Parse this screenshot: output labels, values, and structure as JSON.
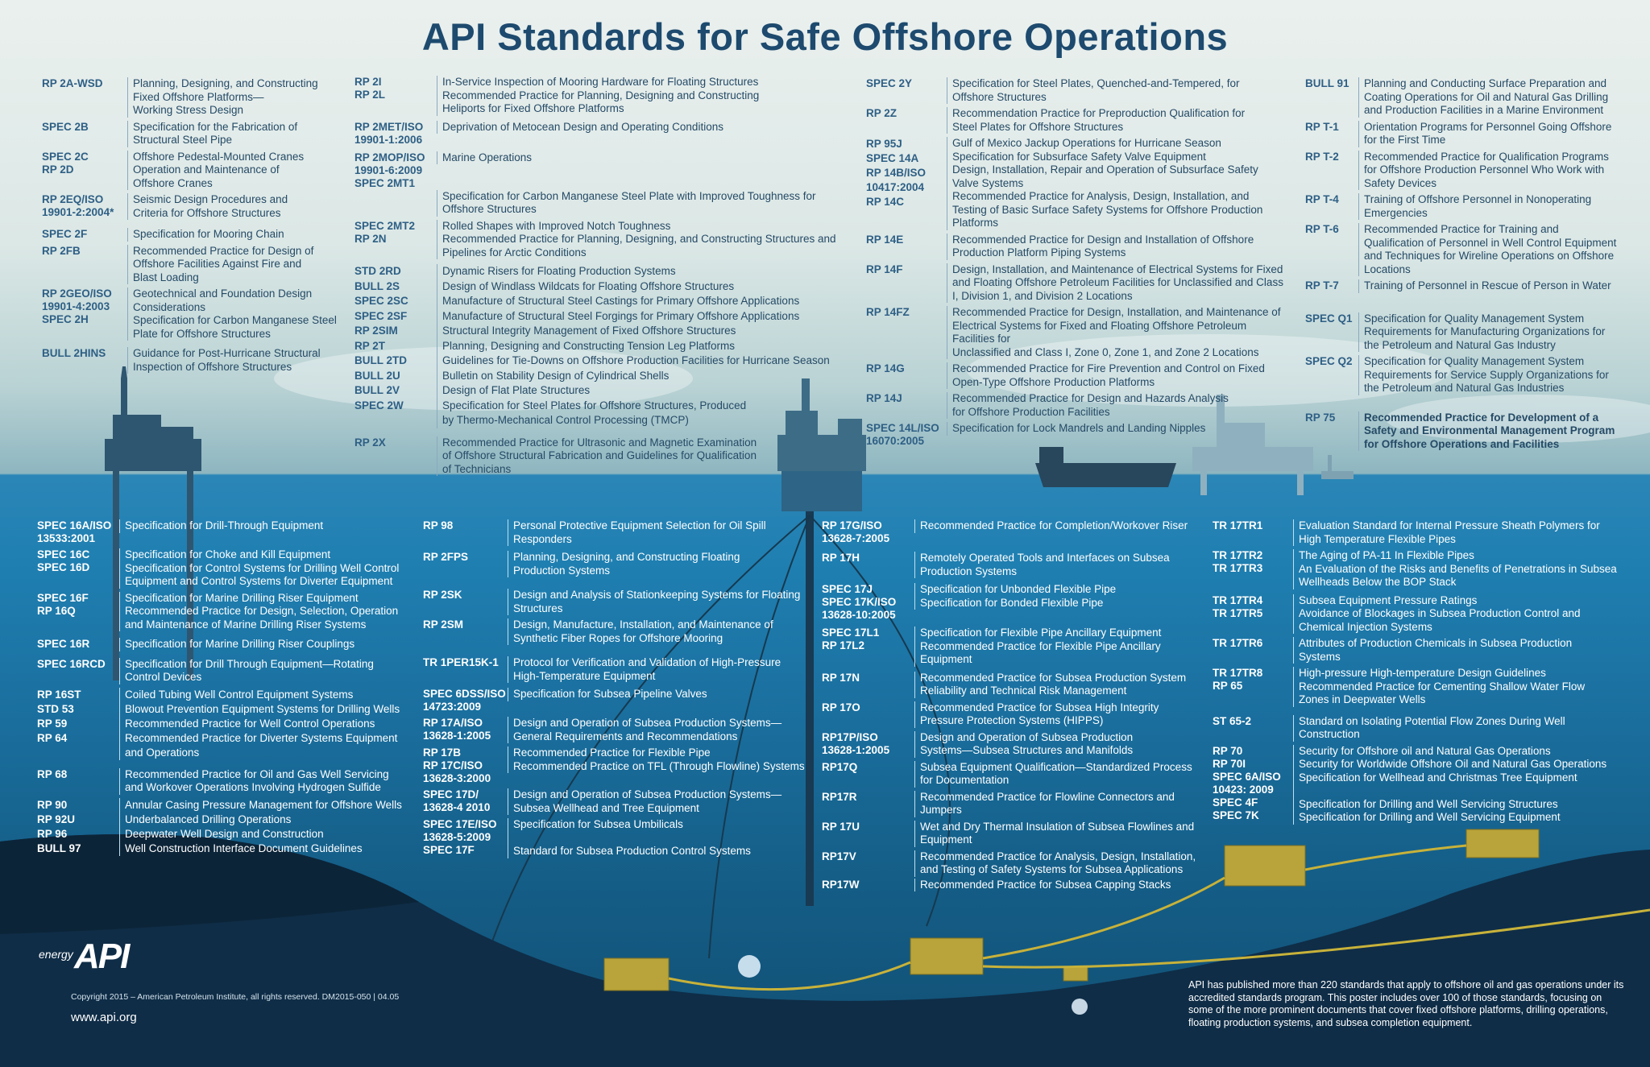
{
  "title": "API Standards for Safe Offshore Operations",
  "top_columns": [
    [
      {
        "code": "RP 2A-WSD",
        "desc": "Planning, Designing, and Constructing\nFixed Offshore Platforms—\nWorking Stress Design"
      },
      {
        "code": "SPEC 2B",
        "desc": "Specification for the Fabrication of\nStructural Steel Pipe"
      },
      {
        "code": "SPEC 2C\nRP 2D",
        "desc": "Offshore Pedestal-Mounted Cranes\nOperation and Maintenance of\nOffshore Cranes"
      },
      {
        "code": "RP 2EQ/ISO\n19901-2:2004*",
        "desc": "Seismic Design Procedures and\nCriteria for Offshore Structures"
      },
      {
        "code": "SPEC 2F",
        "desc": "Specification for Mooring Chain"
      },
      {
        "code": "RP 2FB",
        "desc": "Recommended Practice for Design of\nOffshore Facilities Against Fire and\nBlast Loading"
      },
      {
        "code": "RP 2GEO/ISO\n19901-4:2003\nSPEC 2H",
        "desc": "Geotechnical and Foundation Design\nConsiderations\nSpecification for Carbon Manganese Steel\nPlate for Offshore Structures"
      },
      {
        "code": "BULL 2HINS",
        "desc": "Guidance for Post-Hurricane Structural\nInspection of Offshore Structures"
      }
    ],
    [
      {
        "code": "RP 2I\nRP 2L",
        "desc": "In-Service Inspection of Mooring Hardware for Floating Structures\nRecommended Practice for Planning, Designing and Constructing\nHeliports for Fixed Offshore Platforms"
      },
      {
        "code": "RP 2MET/ISO\n19901-1:2006",
        "desc": "Deprivation of Metocean Design and Operating Conditions"
      },
      {
        "code": "RP 2MOP/ISO\n19901-6:2009\nSPEC 2MT1",
        "desc": "Marine Operations"
      },
      {
        "code": "",
        "desc": "Specification for Carbon Manganese Steel Plate with Improved Toughness for\nOffshore Structures"
      },
      {
        "code": "SPEC 2MT2\nRP 2N",
        "desc": "Rolled Shapes with Improved Notch Toughness\nRecommended Practice for Planning, Designing, and Constructing Structures and\nPipelines for Arctic Conditions"
      },
      {
        "code": "STD 2RD\nBULL 2S\nSPEC 2SC\nSPEC 2SF\nRP 2SIM\nRP 2T\nBULL 2TD\nBULL 2U\nBULL 2V\nSPEC 2W",
        "desc": "Dynamic Risers for Floating Production Systems\nDesign of Windlass Wildcats for Floating Offshore Structures\nManufacture of Structural Steel Castings for Primary Offshore Applications\nManufacture of Structural Steel Forgings for Primary Offshore Applications\nStructural Integrity Management of Fixed Offshore Structures\nPlanning, Designing and Constructing Tension Leg Platforms\nGuidelines for Tie-Downs on Offshore Production Facilities for Hurricane Season\nBulletin on Stability Design of Cylindrical Shells\nDesign of Flat Plate Structures\nSpecification for Steel Plates for Offshore Structures, Produced\nby Thermo-Mechanical Control Processing (TMCP)"
      },
      {
        "code": "RP 2X",
        "desc": "Recommended Practice for Ultrasonic and Magnetic Examination\nof Offshore Structural Fabrication and Guidelines for Qualification\nof Technicians"
      }
    ],
    [
      {
        "code": "SPEC 2Y",
        "desc": "Specification for Steel Plates, Quenched-and-Tempered, for\nOffshore Structures"
      },
      {
        "code": "RP 2Z",
        "desc": "Recommendation Practice for Preproduction Qualification for\nSteel Plates for Offshore Structures"
      },
      {
        "code": "RP 95J\nSPEC 14A\nRP 14B/ISO\n10417:2004\nRP 14C",
        "desc": "Gulf of Mexico Jackup Operations for Hurricane Season\nSpecification for Subsurface Safety Valve Equipment\nDesign, Installation, Repair and Operation of Subsurface Safety\nValve Systems\nRecommended Practice for Analysis, Design, Installation, and\nTesting of Basic Surface Safety Systems for Offshore Production\nPlatforms"
      },
      {
        "code": "RP 14E",
        "desc": "Recommended Practice for Design and Installation of Offshore\nProduction Platform Piping Systems"
      },
      {
        "code": "RP 14F",
        "desc": "Design, Installation, and Maintenance of Electrical Systems for Fixed\nand Floating Offshore Petroleum Facilities for Unclassified and Class\nI, Division 1, and Division 2 Locations"
      },
      {
        "code": "RP 14FZ",
        "desc": "Recommended Practice for Design, Installation, and Maintenance of\nElectrical Systems for Fixed and Floating Offshore Petroleum Facilities for\nUnclassified and Class I, Zone 0, Zone 1, and Zone 2 Locations"
      },
      {
        "code": "RP 14G",
        "desc": "Recommended Practice for Fire Prevention and Control on Fixed\nOpen-Type Offshore Production Platforms"
      },
      {
        "code": "RP 14J",
        "desc": "Recommended Practice for Design and Hazards Analysis\nfor Offshore Production Facilities"
      },
      {
        "code": "SPEC 14L/ISO\n16070:2005",
        "desc": "Specification for Lock Mandrels and Landing Nipples"
      }
    ],
    [
      {
        "code": "BULL 91",
        "desc": "Planning and Conducting Surface Preparation and\nCoating Operations for Oil and Natural Gas Drilling\nand Production Facilities in a Marine Environment"
      },
      {
        "code": "RP T-1",
        "desc": "Orientation Programs for Personnel Going Offshore\nfor the First Time"
      },
      {
        "code": "RP T-2",
        "desc": "Recommended Practice for Qualification Programs\nfor Offshore Production Personnel Who Work with\nSafety Devices"
      },
      {
        "code": "RP T-4",
        "desc": "Training of Offshore Personnel in Nonoperating\nEmergencies"
      },
      {
        "code": "RP T-6",
        "desc": "Recommended Practice for Training and\nQualification of Personnel in Well Control Equipment\nand Techniques for Wireline Operations on Offshore\nLocations"
      },
      {
        "code": "RP T-7",
        "desc": "Training of Personnel in Rescue of Person in Water"
      },
      {
        "code": "SPEC Q1",
        "desc": "Specification for Quality Management System\nRequirements for Manufacturing Organizations for\nthe Petroleum and Natural Gas Industry"
      },
      {
        "code": "SPEC Q2",
        "desc": "Specification for Quality Management System\nRequirements for Service Supply Organizations for\nthe Petroleum and Natural Gas Industries"
      },
      {
        "code": "RP 75",
        "desc": "Recommended Practice for Development of a\nSafety and Environmental Management Program\nfor Offshore Operations and Facilities"
      }
    ]
  ],
  "bottom_columns": [
    [
      {
        "code": "SPEC 16A/ISO\n13533:2001",
        "desc": "Specification for Drill-Through Equipment"
      },
      {
        "code": "SPEC 16C\nSPEC 16D",
        "desc": "Specification for Choke and Kill Equipment\nSpecification for Control Systems for Drilling Well Control\nEquipment and Control Systems for Diverter Equipment"
      },
      {
        "code": "SPEC 16F\nRP 16Q",
        "desc": "Specification for Marine Drilling Riser Equipment\nRecommended Practice for Design, Selection, Operation\nand Maintenance of Marine Drilling Riser Systems"
      },
      {
        "code": "SPEC 16R",
        "desc": "Specification for Marine Drilling Riser Couplings"
      },
      {
        "code": "SPEC 16RCD",
        "desc": "Specification for Drill Through Equipment—Rotating\nControl Devices"
      },
      {
        "code": "RP 16ST\nSTD 53\nRP 59\nRP 64",
        "desc": "Coiled Tubing Well Control Equipment Systems\nBlowout Prevention Equipment Systems for Drilling Wells\nRecommended Practice for Well Control Operations\nRecommended Practice for Diverter Systems Equipment\nand Operations"
      },
      {
        "code": "RP 68",
        "desc": "Recommended Practice for Oil and Gas Well Servicing\nand Workover Operations Involving Hydrogen Sulfide"
      },
      {
        "code": "RP 90\nRP 92U\nRP 96\nBULL 97",
        "desc": "Annular Casing Pressure Management for Offshore Wells\nUnderbalanced Drilling Operations\nDeepwater Well Design and Construction\nWell Construction Interface Document Guidelines"
      }
    ],
    [
      {
        "code": "RP 98",
        "desc": "Personal Protective Equipment Selection for Oil Spill\nResponders"
      },
      {
        "code": "RP 2FPS",
        "desc": "Planning, Designing, and Constructing Floating\nProduction Systems"
      },
      {
        "code": "RP 2SK",
        "desc": "Design and Analysis of Stationkeeping Systems for Floating\nStructures"
      },
      {
        "code": "RP 2SM",
        "desc": "Design, Manufacture, Installation, and Maintenance of\nSynthetic Fiber Ropes for Offshore Mooring"
      },
      {
        "code": "TR 1PER15K-1",
        "desc": "Protocol for Verification and Validation of High-Pressure\nHigh-Temperature Equipment"
      },
      {
        "code": "SPEC 6DSS/ISO\n14723:2009",
        "desc": "Specification for Subsea Pipeline Valves"
      },
      {
        "code": "RP 17A/ISO\n13628-1:2005",
        "desc": "Design and Operation of Subsea Production Systems—\nGeneral Requirements and Recommendations"
      },
      {
        "code": "RP 17B\nRP 17C/ISO\n13628-3:2000",
        "desc": "Recommended Practice for Flexible Pipe\nRecommended Practice on TFL (Through Flowline) Systems"
      },
      {
        "code": "SPEC 17D/\n13628-4 2010",
        "desc": "Design and Operation of Subsea Production Systems—\nSubsea Wellhead and Tree Equipment"
      },
      {
        "code": "SPEC 17E/ISO\n13628-5:2009\nSPEC 17F",
        "desc": "Specification for Subsea Umbilicals\n\nStandard for Subsea Production Control Systems"
      }
    ],
    [
      {
        "code": "RP 17G/ISO\n13628-7:2005",
        "desc": "Recommended Practice for Completion/Workover Riser"
      },
      {
        "code": "RP 17H",
        "desc": "Remotely Operated Tools and Interfaces on Subsea\nProduction Systems"
      },
      {
        "code": "SPEC 17J\nSPEC 17K/ISO\n13628-10:2005",
        "desc": "Specification for Unbonded Flexible Pipe\nSpecification for Bonded Flexible Pipe"
      },
      {
        "code": "SPEC 17L1\nRP 17L2",
        "desc": "Specification for Flexible Pipe Ancillary Equipment\nRecommended Practice for Flexible Pipe Ancillary\nEquipment"
      },
      {
        "code": "RP 17N",
        "desc": "Recommended Practice for Subsea Production System\nReliability and Technical Risk Management"
      },
      {
        "code": "RP 17O",
        "desc": "Recommended Practice for Subsea High Integrity\nPressure Protection Systems (HIPPS)"
      },
      {
        "code": "RP17P/ISO\n13628-1:2005",
        "desc": "Design and Operation of Subsea Production\nSystems—Subsea Structures and Manifolds"
      },
      {
        "code": "RP17Q",
        "desc": "Subsea Equipment Qualification—Standardized Process\nfor Documentation"
      },
      {
        "code": "RP17R",
        "desc": "Recommended Practice for Flowline Connectors and\nJumpers"
      },
      {
        "code": "RP 17U",
        "desc": "Wet and Dry Thermal Insulation of Subsea Flowlines and\nEquipment"
      },
      {
        "code": "RP17V",
        "desc": "Recommended Practice for Analysis, Design, Installation,\nand Testing of Safety Systems for Subsea Applications"
      },
      {
        "code": "RP17W",
        "desc": "Recommended Practice for Subsea Capping Stacks"
      }
    ],
    [
      {
        "code": "TR 17TR1",
        "desc": "Evaluation Standard for Internal Pressure Sheath Polymers for\nHigh Temperature Flexible Pipes"
      },
      {
        "code": "TR 17TR2\nTR 17TR3",
        "desc": "The Aging of PA-11 In Flexible Pipes\nAn Evaluation of the Risks and Benefits of Penetrations in Subsea\nWellheads Below the BOP Stack"
      },
      {
        "code": "TR 17TR4\nTR 17TR5",
        "desc": "Subsea Equipment Pressure Ratings\nAvoidance of Blockages in Subsea Production Control and\nChemical Injection Systems"
      },
      {
        "code": "TR 17TR6",
        "desc": "Attributes of Production Chemicals in Subsea Production\nSystems"
      },
      {
        "code": "TR 17TR8\nRP 65",
        "desc": "High-pressure High-temperature Design Guidelines\nRecommended Practice for Cementing Shallow Water Flow\nZones in Deepwater Wells"
      },
      {
        "code": "ST 65-2",
        "desc": "Standard on Isolating Potential Flow Zones During Well\nConstruction"
      },
      {
        "code": "RP 70\nRP 70I\nSPEC 6A/ISO\n10423: 2009\nSPEC 4F\nSPEC 7K",
        "desc": "Security for Offshore oil and Natural Gas Operations\nSecurity for Worldwide Offshore Oil and Natural Gas Operations\nSpecification for Wellhead and Christmas Tree Equipment\n\nSpecification for Drilling and Well Servicing Structures\nSpecification for Drilling and Well Servicing Equipment"
      }
    ]
  ],
  "logo_energy": "energy",
  "logo_api": "API",
  "copyright": "Copyright 2015 – American Petroleum Institute, all rights reserved. DM2015-050 |  04.05",
  "website": "www.api.org",
  "about": "API has published more than 220 standards that apply to offshore oil and gas operations under its accredited standards program.  This poster includes over 100 of those standards, focusing on some of the more prominent documents that cover fixed offshore platforms, drilling operations, floating production systems, and subsea completion equipment.",
  "colors": {
    "title": "#1d4a6e",
    "sea": "#1f7fb1",
    "seabed": "#102f4a",
    "equipment": "#c8b23a"
  }
}
